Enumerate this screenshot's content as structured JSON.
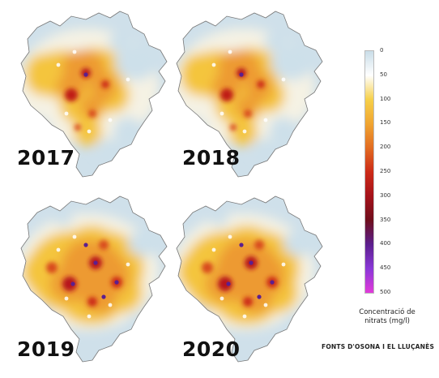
{
  "maps": [
    {
      "year": "2017",
      "level": "low"
    },
    {
      "year": "2018",
      "level": "low"
    },
    {
      "year": "2019",
      "level": "high"
    },
    {
      "year": "2020",
      "level": "high"
    }
  ],
  "legend": {
    "title_line1": "Concentració de",
    "title_line2": "nitrats (mg/l)",
    "ticks": [
      "0",
      "50",
      "100",
      "150",
      "200",
      "250",
      "300",
      "350",
      "400",
      "450",
      "500"
    ],
    "colors": [
      "#c9dde8",
      "#ffffff",
      "#f6d04a",
      "#f0a531",
      "#e26c22",
      "#cc2a17",
      "#a5121a",
      "#6e0e1c",
      "#5c1f8e",
      "#8a38d8",
      "#e23ad9"
    ]
  },
  "source": "FONTS D'OSONA I EL LLUÇANÈS"
}
